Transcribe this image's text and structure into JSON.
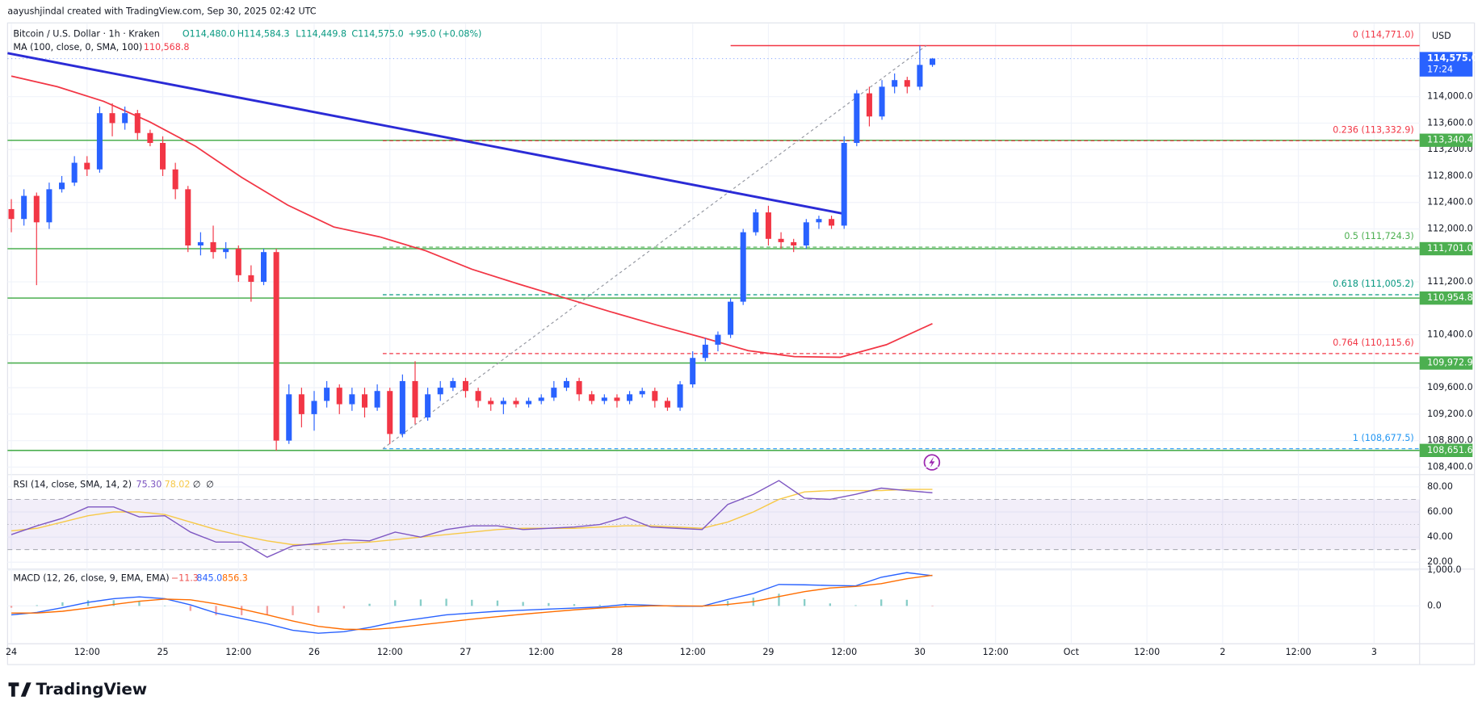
{
  "header": "aayushjindal created with TradingView.com, Sep 30, 2025 02:42 UTC",
  "logo": "TradingView",
  "chart_data": [
    {
      "type": "candlestick",
      "title": "Bitcoin / U.S. Dollar · 1h · Kraken",
      "ohlc_labels": [
        "O114,480.0",
        "H114,584.3",
        "L114,449.8",
        "C114,575.0"
      ],
      "change_label": "+95.0 (+0.08%)",
      "currency": "USD",
      "up_color": "#2962ff",
      "down_color": "#f23645",
      "candles": [
        [
          112300,
          112450,
          111950,
          112150
        ],
        [
          112150,
          112600,
          112050,
          112500
        ],
        [
          112500,
          112550,
          111150,
          112100
        ],
        [
          112100,
          112700,
          112000,
          112600
        ],
        [
          112600,
          112800,
          112550,
          112700
        ],
        [
          112700,
          113100,
          112650,
          113000
        ],
        [
          113000,
          113100,
          112800,
          112900
        ],
        [
          112900,
          113850,
          112850,
          113750
        ],
        [
          113750,
          113900,
          113400,
          113600
        ],
        [
          113600,
          113850,
          113500,
          113750
        ],
        [
          113750,
          113800,
          113350,
          113450
        ],
        [
          113450,
          113500,
          113250,
          113300
        ],
        [
          113300,
          113400,
          112800,
          112900
        ],
        [
          112900,
          113000,
          112450,
          112600
        ],
        [
          112600,
          112650,
          111650,
          111750
        ],
        [
          111750,
          111950,
          111600,
          111800
        ],
        [
          111800,
          112050,
          111550,
          111650
        ],
        [
          111650,
          111800,
          111550,
          111700
        ],
        [
          111700,
          111750,
          111200,
          111300
        ],
        [
          111300,
          111450,
          110900,
          111200
        ],
        [
          111200,
          111700,
          111150,
          111650
        ],
        [
          111650,
          111700,
          108650,
          108800
        ],
        [
          108800,
          109650,
          108750,
          109500
        ],
        [
          109500,
          109600,
          109000,
          109200
        ],
        [
          109200,
          109550,
          108950,
          109400
        ],
        [
          109400,
          109700,
          109300,
          109600
        ],
        [
          109600,
          109650,
          109200,
          109350
        ],
        [
          109350,
          109600,
          109250,
          109500
        ],
        [
          109500,
          109600,
          109150,
          109300
        ],
        [
          109300,
          109650,
          109250,
          109550
        ],
        [
          109550,
          109600,
          108750,
          108900
        ],
        [
          108900,
          109800,
          108850,
          109700
        ],
        [
          109700,
          110000,
          109050,
          109150
        ],
        [
          109150,
          109600,
          109100,
          109500
        ],
        [
          109500,
          109700,
          109400,
          109600
        ],
        [
          109600,
          109750,
          109550,
          109700
        ],
        [
          109700,
          109750,
          109450,
          109550
        ],
        [
          109550,
          109600,
          109300,
          109400
        ],
        [
          109400,
          109450,
          109250,
          109350
        ],
        [
          109350,
          109450,
          109200,
          109400
        ],
        [
          109400,
          109450,
          109300,
          109350
        ],
        [
          109350,
          109450,
          109300,
          109400
        ],
        [
          109400,
          109500,
          109350,
          109450
        ],
        [
          109450,
          109700,
          109400,
          109600
        ],
        [
          109600,
          109750,
          109550,
          109700
        ],
        [
          109700,
          109750,
          109400,
          109500
        ],
        [
          109500,
          109550,
          109350,
          109400
        ],
        [
          109400,
          109500,
          109350,
          109450
        ],
        [
          109450,
          109500,
          109300,
          109400
        ],
        [
          109400,
          109550,
          109350,
          109500
        ],
        [
          109500,
          109600,
          109450,
          109550
        ],
        [
          109550,
          109600,
          109300,
          109400
        ],
        [
          109400,
          109450,
          109250,
          109300
        ],
        [
          109300,
          109700,
          109250,
          109650
        ],
        [
          109650,
          110150,
          109600,
          110050
        ],
        [
          110050,
          110350,
          110000,
          110250
        ],
        [
          110250,
          110450,
          110150,
          110400
        ],
        [
          110400,
          110950,
          110350,
          110900
        ],
        [
          110900,
          112000,
          110850,
          111950
        ],
        [
          111950,
          112300,
          111900,
          112250
        ],
        [
          112250,
          112350,
          111750,
          111850
        ],
        [
          111850,
          111950,
          111700,
          111800
        ],
        [
          111800,
          111850,
          111650,
          111750
        ],
        [
          111750,
          112150,
          111700,
          112100
        ],
        [
          112100,
          112200,
          112000,
          112150
        ],
        [
          112150,
          112200,
          112000,
          112050
        ],
        [
          112050,
          113400,
          112000,
          113300
        ],
        [
          113300,
          114100,
          113250,
          114050
        ],
        [
          114050,
          114150,
          113550,
          113700
        ],
        [
          113700,
          114250,
          113650,
          114150
        ],
        [
          114150,
          114350,
          114050,
          114250
        ],
        [
          114250,
          114300,
          114050,
          114150
        ],
        [
          114150,
          114771,
          114100,
          114480
        ],
        [
          114480,
          114584.3,
          114449.8,
          114575
        ]
      ],
      "last_price": {
        "value": 114575,
        "label": "114,575.0",
        "countdown": "17:24"
      },
      "ylim": [
        108300,
        115100
      ],
      "yticks": [
        {
          "value": 114000,
          "label": "114,000.0"
        },
        {
          "value": 113600,
          "label": "113,600.0"
        },
        {
          "value": 113200,
          "label": "113,200.0"
        },
        {
          "value": 112800,
          "label": "112,800.0"
        },
        {
          "value": 112400,
          "label": "112,400.0"
        },
        {
          "value": 112000,
          "label": "112,000.0"
        },
        {
          "value": 111200,
          "label": "111,200.0"
        },
        {
          "value": 110400,
          "label": "110,400.0"
        },
        {
          "value": 109600,
          "label": "109,600.0"
        },
        {
          "value": 109200,
          "label": "109,200.0"
        },
        {
          "value": 108800,
          "label": "108,800.0"
        },
        {
          "value": 108400,
          "label": "108,400.0"
        }
      ],
      "x_labels": [
        "24",
        "12:00",
        "25",
        "12:00",
        "26",
        "12:00",
        "27",
        "12:00",
        "28",
        "12:00",
        "29",
        "12:00",
        "30",
        "12:00",
        "Oct",
        "12:00",
        "2",
        "12:00",
        "3"
      ],
      "grid": true,
      "ma": {
        "name": "MA (100, close, 0, SMA, 100)",
        "color": "#f23645",
        "values": [
          114310,
          114150,
          113930,
          113620,
          113250,
          112780,
          112360,
          112030,
          111880,
          111670,
          111390,
          111170,
          110960,
          110750,
          110550,
          110360,
          110160,
          110070,
          110060,
          110250,
          110568.8
        ],
        "value_label": "110,568.8"
      },
      "trendline": {
        "color": "#2b2bd6",
        "values": [
          114657,
          112229
        ]
      },
      "level_color": "#4caf50",
      "levels": [
        {
          "value": 113340.4,
          "label": "113,340.4"
        },
        {
          "value": 111701.0,
          "label": "111,701.0"
        },
        {
          "value": 110954.8,
          "label": "110,954.8"
        },
        {
          "value": 109972.9,
          "label": "109,972.9"
        },
        {
          "value": 108651.6,
          "label": "108,651.6"
        }
      ],
      "fib": [
        {
          "value": 114771.0,
          "label": "0 (114,771.0)",
          "color": "#f23645"
        },
        {
          "value": 113332.9,
          "label": "0.236 (113,332.9)",
          "color": "#f23645"
        },
        {
          "value": 111724.3,
          "label": "0.5 (111,724.3)",
          "color": "#4caf50"
        },
        {
          "value": 111005.2,
          "label": "0.618 (111,005.2)",
          "color": "#089981"
        },
        {
          "value": 110115.6,
          "label": "0.764 (110,115.6)",
          "color": "#f23645"
        },
        {
          "value": 108677.5,
          "label": "1 (108,677.5)",
          "color": "#2196f3"
        }
      ]
    },
    {
      "type": "line",
      "title": "RSI (14, close, SMA, 14, 2)",
      "extra_labels": [
        "∅",
        "∅"
      ],
      "ylim": [
        16,
        89
      ],
      "yticks": [
        {
          "value": 80,
          "label": "80.00"
        },
        {
          "value": 60,
          "label": "60.00"
        },
        {
          "value": 40,
          "label": "40.00"
        },
        {
          "value": 20,
          "label": "20.00"
        }
      ],
      "band": [
        30,
        70
      ],
      "band_color": "#7e57c2",
      "midline": 50,
      "series": [
        {
          "color": "#7e57c2",
          "value_label": "75.30",
          "values": [
            42,
            49,
            55,
            64,
            64,
            56,
            57,
            44,
            36,
            36,
            24,
            33,
            35,
            38,
            37,
            44,
            40,
            46,
            49,
            49,
            46,
            47,
            48,
            50,
            56,
            48,
            47,
            46,
            66,
            74,
            85,
            71,
            70,
            74,
            79,
            77,
            75.3
          ]
        },
        {
          "color": "#f7c948",
          "value_label": "78.02",
          "values": [
            45,
            47,
            52,
            57,
            60,
            60,
            58,
            52,
            46,
            41,
            37,
            34,
            34,
            35,
            36,
            38,
            40,
            42,
            44,
            46,
            47,
            47,
            47,
            48,
            49,
            49,
            48,
            47,
            52,
            60,
            70,
            76,
            77,
            77,
            77,
            78,
            78.02
          ]
        }
      ]
    },
    {
      "type": "macd",
      "title": "MACD (12, 26, close, 9, EMA, EMA)",
      "ylim": [
        -1030,
        1000
      ],
      "yticks": [
        {
          "value": 1000,
          "label": "1,000.0"
        },
        {
          "value": 0,
          "label": "0.0"
        }
      ],
      "histogram": {
        "up_color": "#26a69a",
        "down_color": "#ef5350",
        "value_label": "−11.3",
        "values": [
          -50,
          20,
          100,
          160,
          160,
          120,
          10,
          -140,
          -260,
          -260,
          -250,
          -260,
          -190,
          -70,
          60,
          160,
          180,
          200,
          170,
          150,
          110,
          80,
          50,
          30,
          60,
          20,
          -10,
          -5,
          140,
          230,
          340,
          190,
          70,
          20,
          180,
          170,
          -11.3
        ]
      },
      "series": [
        {
          "color": "#2962ff",
          "value_label": "845.0",
          "values": [
            -250,
            -180,
            -50,
            100,
            200,
            250,
            200,
            30,
            -200,
            -350,
            -500,
            -680,
            -760,
            -720,
            -600,
            -450,
            -350,
            -250,
            -200,
            -150,
            -120,
            -90,
            -60,
            -30,
            40,
            20,
            -10,
            -10,
            180,
            350,
            600,
            590,
            570,
            560,
            800,
            930,
            845
          ]
        },
        {
          "color": "#ff6d00",
          "value_label": "856.3",
          "values": [
            -200,
            -200,
            -150,
            -60,
            40,
            130,
            190,
            170,
            60,
            -90,
            -250,
            -420,
            -570,
            -650,
            -660,
            -610,
            -530,
            -450,
            -370,
            -300,
            -230,
            -170,
            -110,
            -60,
            -20,
            0,
            0,
            -5,
            40,
            120,
            260,
            400,
            500,
            540,
            620,
            760,
            856.3
          ]
        }
      ]
    }
  ]
}
